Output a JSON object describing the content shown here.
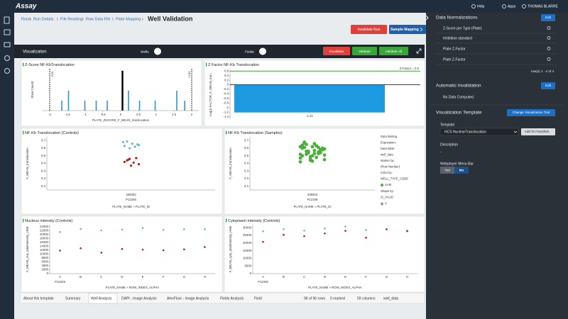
{
  "header": {
    "logo": "Assay",
    "help": "Help",
    "apps": "Apps",
    "user": "THOMAS BLARRE"
  },
  "breadcrumb": [
    "Runs",
    "Run Details",
    "File Reading",
    "Raw Data File",
    "Plate Mapping"
  ],
  "page_title": "Well Validation",
  "buttons": {
    "invalidate_run": "Invalidate Run",
    "sample_mapping": "Sample Mapping"
  },
  "toolbar": {
    "title": "Visualization",
    "wells": "Wells",
    "fields": "Fields",
    "invalidate": "Invalidate",
    "validate": "Validate",
    "validate_all": "Validate All"
  },
  "charts": [
    {
      "type": "bar",
      "title": "Z-Score NF-KbTranslocation",
      "x_label": "PLATE_ZSCORE_F_MEAN_translocation",
      "y_label": "(Row Count)",
      "xlim": [
        -2.2,
        2.2
      ],
      "xticks": [
        -2,
        -1.5,
        -1,
        -0.5,
        0,
        0.5,
        1,
        1.5,
        2
      ],
      "ylim": [
        0,
        4.2
      ],
      "series": [
        {
          "color": "#3b8fc4",
          "x": [
            -1.66,
            -1.47,
            -1.01,
            -0.69,
            -0.38,
            0.22,
            0.53,
            0.97,
            1.58,
            1.8
          ],
          "values": [
            1,
            2,
            1,
            1,
            1,
            2,
            1,
            1,
            2,
            1
          ]
        },
        {
          "color": "#000000",
          "x": [
            0.05
          ],
          "values": [
            4
          ]
        }
      ],
      "limits": [
        {
          "value": -2,
          "label": "-2SD"
        },
        {
          "value": 2,
          "label": "+2SD"
        }
      ]
    },
    {
      "type": "bar",
      "title": "Z Factor NF-Kb Translocation",
      "y_label": "Avg(Z-FACTOR_F_MEAN_tran...",
      "values": [
        -1.21
      ],
      "value_labels": [
        "-1.21"
      ],
      "color": "#1e9be0",
      "ylim": [
        -1.5,
        0.7
      ],
      "yticks": [
        0.6,
        0.4,
        0.2,
        0,
        -0.2,
        -0.4,
        -0.6,
        -0.8,
        -1,
        -1.2,
        -1.4
      ],
      "threshold": {
        "value": 0.6,
        "label": "Z-Factor = 0.6",
        "color": "#3aa63a"
      }
    },
    {
      "type": "strip",
      "title": "NF-Kb Translocation (Controls)",
      "y_label": "F_MEAN_translocation",
      "x_label": "PLATE_NAME » PLATE_ID",
      "categories": [
        "336002"
      ],
      "group": "P12346",
      "ylim": [
        0.05,
        0.75
      ],
      "yticks": [
        0.1,
        0.2,
        0.3,
        0.4,
        0.5,
        0.6,
        0.7
      ],
      "series": [
        {
          "color": "#6cb4d8",
          "values": [
            0.68,
            0.65,
            0.62,
            0.66,
            0.6,
            0.69,
            0.63,
            0.64
          ]
        },
        {
          "color": "#b0201c",
          "values": [
            0.46,
            0.44,
            0.42,
            0.39,
            0.47,
            0.41,
            0.37,
            0.45
          ]
        }
      ]
    },
    {
      "type": "strip",
      "title": "NF-Kb Translocation (Samples)",
      "y_label": "F_MEAN_translocation",
      "x_label": "PLATE_NAME » PLATE_ID",
      "categories": [
        "336002"
      ],
      "group": "P12346",
      "ylim": [
        0.05,
        0.75
      ],
      "yticks": [
        0.1,
        0.2,
        0.3,
        0.4,
        0.5,
        0.6,
        0.7
      ],
      "series": [
        {
          "name": "SAM",
          "color": "#4caf3c",
          "values": [
            0.62,
            0.58,
            0.55,
            0.66,
            0.49,
            0.52,
            0.6,
            0.45,
            0.57,
            0.63,
            0.5,
            0.54,
            0.68,
            0.47,
            0.59,
            0.61,
            0.53,
            0.44,
            0.56,
            0.64,
            0.51,
            0.58,
            0.48,
            0.62,
            0.55,
            0.67,
            0.42,
            0.6,
            0.53,
            0.57,
            0.46,
            0.65,
            0.5,
            0.59,
            0.54,
            0.63,
            0.43,
            0.56,
            0.61,
            0.52
          ]
        }
      ],
      "legend": {
        "texts": [
          "Data limiting",
          "Expression:",
          "Data table:",
          "well_data",
          "Marker by:",
          "(Row Number)",
          "Color by:",
          "WELL_TYPE_CODE"
        ],
        "shape_title": "Shape by:",
        "shape_field": "IS_VALID",
        "shape_item": "V"
      }
    },
    {
      "type": "scatter",
      "title": "Nucleus intensity (Controls)",
      "y_label": "F_MEAN_nuc_totalIntensity_HNE",
      "x_label": "PLATE_NAME » ROW_INDEX_ALPHA",
      "categories": [
        "A",
        "B",
        "C",
        "D",
        "E",
        "F",
        "G",
        "H"
      ],
      "group": "P12346",
      "ylim": [
        0,
        25000
      ],
      "yticks": [
        0,
        2000,
        4000,
        6000,
        8000,
        10000,
        12000,
        14000,
        16000,
        18000,
        20000,
        22000,
        24000
      ],
      "series": [
        {
          "color": "#6cb4d8",
          "values": [
            21300,
            22800,
            22100,
            22600,
            23300,
            22400,
            22700,
            22700
          ]
        },
        {
          "color": "#b0201c",
          "values": [
            11800,
            13000,
            10700,
            12600,
            12300,
            12000,
            12400,
            13600
          ]
        }
      ]
    },
    {
      "type": "scatter",
      "title": "Cytoplasm intensity (Controls)",
      "y_label": "F_MEAN_cyto_totalIntensity_HNE",
      "x_label": "PLATE_NAME » ROW_INDEX_ALPHA",
      "categories": [
        "A",
        "B",
        "C",
        "D",
        "E",
        "F",
        "G",
        "H"
      ],
      "group": "P12346",
      "ylim": [
        0,
        32000
      ],
      "yticks": [
        0,
        5000,
        10000,
        15000,
        20000,
        25000,
        30000
      ],
      "series": [
        {
          "color": "#6cb4d8",
          "values": [
            27700,
            29100,
            28150,
            29540,
            30900,
            28600,
            29100,
            28150
          ]
        },
        {
          "color": "#b0201c",
          "values": [
            20800,
            25400,
            24500,
            26300,
            28000,
            23500,
            29000,
            27800
          ]
        }
      ]
    }
  ],
  "tabs": [
    "About this template",
    "Summary",
    "Well Analysis",
    "DAPI - Image Analysis",
    "AlexFluor - Image Analysis",
    "Fields Analysis",
    "Field"
  ],
  "status": [
    "96 of 96 rows",
    "0 marked",
    "59 columns",
    "well_data"
  ],
  "right_panel": {
    "normalizations_title": "Data Normalizations",
    "edit": "Edit",
    "normalizations": [
      "Z-Score per Type (Plate)",
      "Inhibition standard",
      "Plate Z-Factor",
      "Plate Z-Factor"
    ],
    "rows_info": "row(s) 1 - 4 of 4",
    "invalidation_title": "Automatic Invalidation",
    "invalidation_edit": "Edit",
    "invalidation_text": "No Data Computed.",
    "template_title": "Visualization Template",
    "change_tool": "Change Visualization Tool",
    "template_label": "Template",
    "template_value": "HCS NuclearTranslocation",
    "favorites": "Add To Favorites",
    "description_label": "Description",
    "description_value": "-",
    "menu_bar_label": "Webplayer Menu Bar",
    "yes": "Yes",
    "no": "No"
  }
}
